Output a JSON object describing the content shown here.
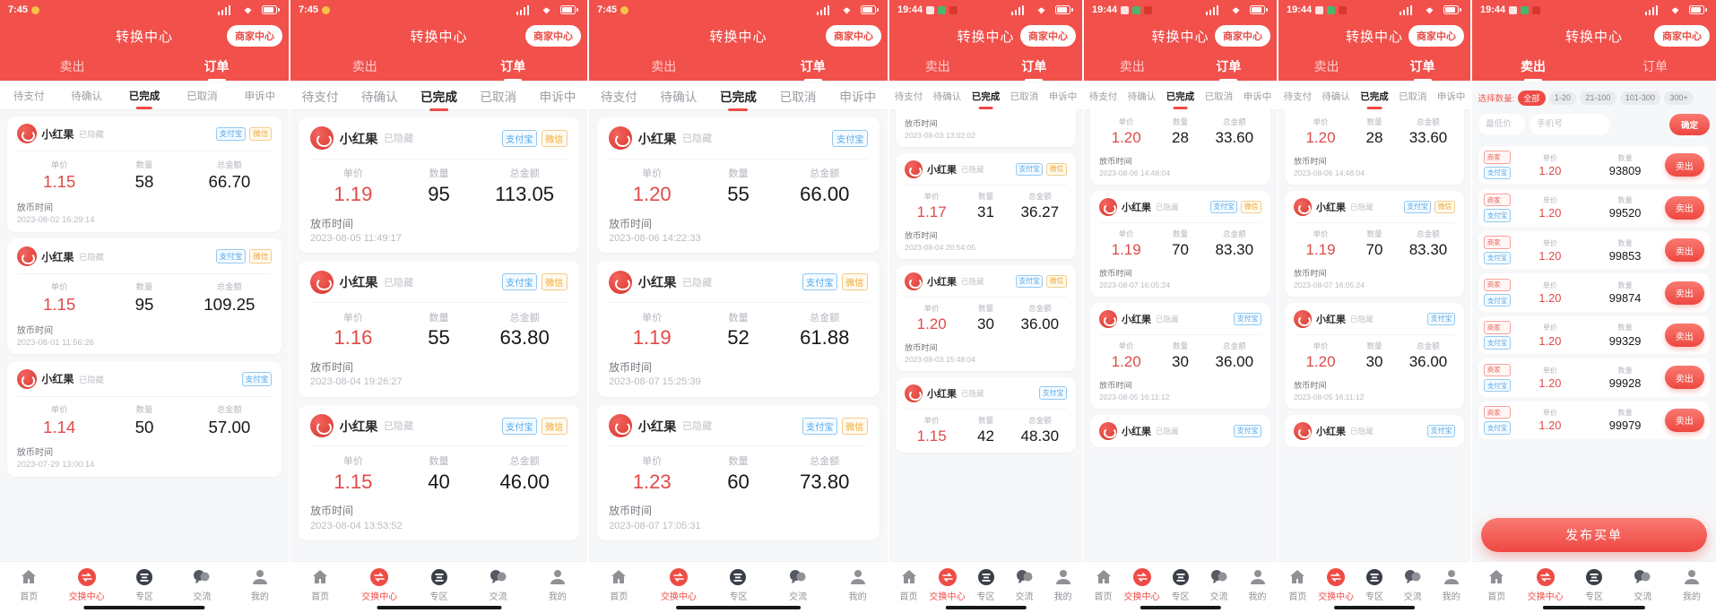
{
  "app": {
    "title": "转换中心",
    "merchant_center": "商家中心",
    "tab_sell": "卖出",
    "tab_orders": "订单",
    "status_tabs": [
      "待支付",
      "待确认",
      "已完成",
      "已取消",
      "申诉中"
    ],
    "active_status_tab": "已完成",
    "product": "小红果",
    "product_state": "已隐藏",
    "labels": {
      "unit_price": "单价",
      "quantity": "数量",
      "total": "总金额",
      "release_time": "放币时间"
    },
    "tags": {
      "alipay": "支付宝",
      "wechat": "微信",
      "merchant": "商家"
    },
    "nav": [
      "首页",
      "交换中心",
      "专区",
      "交流",
      "我的"
    ],
    "active_nav": "交换中心",
    "colors": {
      "header_red": "#f1504b",
      "price_red": "#e04a48",
      "tag_blue": "#54a8e8",
      "tag_orange": "#eda835",
      "tag_merchant_red": "#ef6257",
      "nav_active_red": "#ef4b45"
    }
  },
  "panels": [
    {
      "type": "orders",
      "clock": "7:45",
      "cards": [
        {
          "tags": [
            "alipay",
            "wechat"
          ],
          "price": "1.15",
          "qty": "58",
          "total": "66.70",
          "date": "2023-08-02 16:29:14"
        },
        {
          "tags": [
            "alipay",
            "wechat"
          ],
          "price": "1.15",
          "qty": "95",
          "total": "109.25",
          "date": "2023-08-01 11:56:26"
        },
        {
          "tags": [
            "alipay"
          ],
          "price": "1.14",
          "qty": "50",
          "total": "57.00",
          "date": "2023-07-29 13:00:14"
        }
      ]
    },
    {
      "type": "orders",
      "clock": "7:45",
      "cards": [
        {
          "tags": [
            "alipay",
            "wechat"
          ],
          "price": "1.19",
          "qty": "95",
          "total": "113.05",
          "date": "2023-08-05 11:49:17"
        },
        {
          "tags": [
            "alipay",
            "wechat"
          ],
          "price": "1.16",
          "qty": "55",
          "total": "63.80",
          "date": "2023-08-04 19:26:27"
        },
        {
          "tags": [
            "alipay",
            "wechat"
          ],
          "price": "1.15",
          "qty": "40",
          "total": "46.00",
          "date": "2023-08-04 13:53:52"
        }
      ]
    },
    {
      "type": "orders",
      "clock": "7:45",
      "cards": [
        {
          "tags": [
            "alipay"
          ],
          "price": "1.20",
          "qty": "55",
          "total": "66.00",
          "date": "2023-08-06 14:22:33"
        },
        {
          "tags": [
            "alipay",
            "wechat"
          ],
          "price": "1.19",
          "qty": "52",
          "total": "61.88",
          "date": "2023-08-07 15:25:39"
        },
        {
          "tags": [
            "alipay",
            "wechat"
          ],
          "price": "1.23",
          "qty": "60",
          "total": "73.80",
          "date": "2023-08-07 17:05:31"
        }
      ]
    },
    {
      "type": "orders",
      "clock": "19:44",
      "top_date": "2023-08-03 13:02:02",
      "cards": [
        {
          "tags": [
            "alipay",
            "wechat"
          ],
          "price": "1.17",
          "qty": "31",
          "total": "36.27",
          "date": "2023-08-04 20:54:05"
        },
        {
          "tags": [
            "alipay",
            "wechat"
          ],
          "price": "1.20",
          "qty": "30",
          "total": "36.00",
          "date": "2023-08-03 15:48:04"
        },
        {
          "tags": [
            "alipay"
          ],
          "price": "1.15",
          "qty": "42",
          "total": "48.30",
          "date": ""
        }
      ]
    },
    {
      "type": "orders",
      "clock": "19:44",
      "top_values": {
        "price": "1.20",
        "qty": "28",
        "total": "33.60",
        "date": "2023-08-06 14:48:04"
      },
      "cards": [
        {
          "tags": [
            "alipay",
            "wechat"
          ],
          "price": "1.19",
          "qty": "70",
          "total": "83.30",
          "date": "2023-08-07 16:05:24"
        },
        {
          "tags": [
            "alipay"
          ],
          "price": "1.20",
          "qty": "30",
          "total": "36.00",
          "date": "2023-08-05 16:11:12"
        },
        {
          "tags": [
            "alipay"
          ],
          "partial": true
        }
      ]
    },
    {
      "type": "orders",
      "clock": "19:44",
      "top_values": {
        "price": "1.20",
        "qty": "28",
        "total": "33.60",
        "date": "2023-08-06 14:48:04"
      },
      "cards": [
        {
          "tags": [
            "alipay",
            "wechat"
          ],
          "price": "1.19",
          "qty": "70",
          "total": "83.30",
          "date": "2023-08-07 16:05:24"
        },
        {
          "tags": [
            "alipay"
          ],
          "price": "1.20",
          "qty": "30",
          "total": "36.00",
          "date": "2023-08-05 16:11:12"
        },
        {
          "tags": [
            "alipay"
          ],
          "partial": true
        }
      ]
    },
    {
      "type": "sell",
      "clock": "19:44"
    }
  ],
  "sell": {
    "filter_label": "选择数量:",
    "chips": [
      "全部",
      "1-20",
      "21-100",
      "101-300",
      "300+"
    ],
    "active_chip": "全部",
    "min_price_placeholder": "最低价",
    "phone_placeholder": "手机号",
    "confirm_label": "确定",
    "sell_button_label": "卖出",
    "publish_button_label": "发布买单",
    "rows": [
      {
        "price": "1.20",
        "qty": "93809"
      },
      {
        "price": "1.20",
        "qty": "99520"
      },
      {
        "price": "1.20",
        "qty": "99853"
      },
      {
        "price": "1.20",
        "qty": "99874"
      },
      {
        "price": "1.20",
        "qty": "99329"
      },
      {
        "price": "1.20",
        "qty": "99928"
      },
      {
        "price": "1.20",
        "qty": "99979"
      }
    ]
  }
}
